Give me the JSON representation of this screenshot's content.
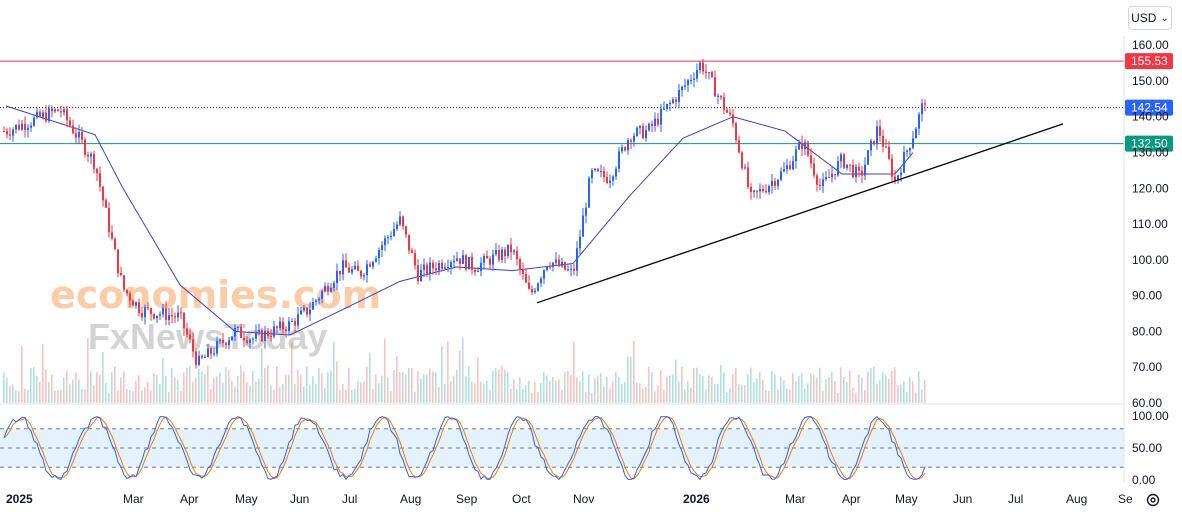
{
  "toolbar": {
    "currency": "USD"
  },
  "watermark": {
    "line1": "economies.com",
    "line2": "FxNewsToday"
  },
  "colors": {
    "up": "#2962ff",
    "down": "#f23645",
    "ma": "#3f3fbf",
    "resistance": "#f23645",
    "support": "#089981",
    "trendline": "#000000",
    "k_line": "#2962ff",
    "d_line": "#f57c00",
    "osc_band": "#e3f2fd"
  },
  "chart_data": [
    {
      "type": "candlestick",
      "price_axis": {
        "ticks": [
          "160.00",
          "150.00",
          "140.00",
          "130.00",
          "120.00",
          "110.00",
          "100.00",
          "90.00",
          "80.00",
          "70.00",
          "60.00"
        ],
        "ylim": [
          60,
          162
        ]
      },
      "time_axis": {
        "ticks": [
          "2025",
          "Mar",
          "Apr",
          "May",
          "Jun",
          "Jul",
          "Aug",
          "Sep",
          "Oct",
          "Nov",
          "2026",
          "Mar",
          "Apr",
          "May",
          "Jun",
          "Jul",
          "Aug",
          "Se"
        ]
      },
      "lines": [
        {
          "value": 155.53,
          "label": "155.53",
          "kind": "resistance"
        },
        {
          "value": 132.5,
          "label": "132.50",
          "kind": "support"
        }
      ],
      "last_price": {
        "value": 142.54,
        "label": "142.54"
      },
      "trendline": {
        "start": [
          "Oct 2025",
          88
        ],
        "end": [
          "Jul 2026",
          138
        ]
      },
      "price_path": [
        [
          "2025",
          136
        ],
        [
          "Jan",
          142
        ],
        [
          "Feb",
          127
        ],
        [
          "Feb",
          104
        ],
        [
          "Mar",
          92
        ],
        [
          "Mar",
          86
        ],
        [
          "Apr",
          84
        ],
        [
          "Apr",
          71
        ],
        [
          "May",
          80
        ],
        [
          "May",
          78
        ],
        [
          "Jun",
          82
        ],
        [
          "Jun",
          86
        ],
        [
          "Jul",
          98
        ],
        [
          "Jul",
          96
        ],
        [
          "Aug",
          111
        ],
        [
          "Aug",
          96
        ],
        [
          "Sep",
          101
        ],
        [
          "Sep",
          98
        ],
        [
          "Oct",
          103
        ],
        [
          "Oct",
          90
        ],
        [
          "Oct",
          100
        ],
        [
          "Nov",
          96
        ],
        [
          "Nov",
          124
        ],
        [
          "Nov",
          123
        ],
        [
          "Dec",
          135
        ],
        [
          "Dec",
          136
        ],
        [
          "Jan",
          148
        ],
        [
          "Jan",
          155
        ],
        [
          "Feb",
          138
        ],
        [
          "Feb",
          117
        ],
        [
          "Mar",
          125
        ],
        [
          "Mar",
          133
        ],
        [
          "Mar",
          120
        ],
        [
          "Apr",
          128
        ],
        [
          "Apr",
          123
        ],
        [
          "Apr",
          137
        ],
        [
          "May",
          122
        ],
        [
          "May",
          135
        ],
        [
          "May",
          150
        ],
        [
          "May",
          142
        ]
      ],
      "moving_average_path": [
        [
          "2025",
          143
        ],
        [
          "Feb",
          135
        ],
        [
          "Mar",
          120
        ],
        [
          "Apr",
          93
        ],
        [
          "May",
          80
        ],
        [
          "Jun",
          79
        ],
        [
          "Jul",
          86
        ],
        [
          "Aug",
          94
        ],
        [
          "Sep",
          98
        ],
        [
          "Oct",
          97
        ],
        [
          "Nov",
          99
        ],
        [
          "Dec",
          118
        ],
        [
          "Jan",
          134
        ],
        [
          "Feb",
          140
        ],
        [
          "Mar",
          136
        ],
        [
          "Apr",
          124
        ],
        [
          "May",
          124
        ],
        [
          "May",
          130
        ]
      ]
    },
    {
      "type": "line",
      "name": "oscillator",
      "y_axis": {
        "ticks": [
          "100.00",
          "50.00",
          "0.00"
        ],
        "ylim": [
          0,
          100
        ]
      },
      "band": [
        20,
        80
      ]
    }
  ]
}
